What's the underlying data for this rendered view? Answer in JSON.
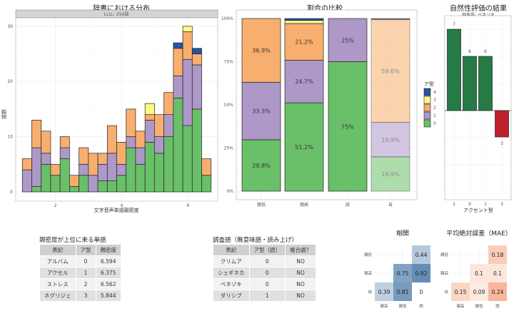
{
  "chart_data": [
    {
      "type": "bar",
      "stacked": true,
      "title": "辞書における分布",
      "facet_label": "LLLL: 254語",
      "xlabel": "文字音声単語親密度",
      "ylabel": "語数",
      "xlim": [
        0.8,
        6.9
      ],
      "ylim": [
        0,
        32
      ],
      "x_ticks": [
        2,
        4,
        6
      ],
      "y_ticks": [
        0,
        10,
        20,
        30
      ],
      "bin_width": 0.285,
      "bin_start": 1.0,
      "series": [
        {
          "name": "0",
          "color": "#6abf69",
          "values": [
            0,
            1,
            5,
            3,
            6,
            1,
            3,
            0,
            2,
            2,
            3,
            8,
            5,
            9,
            7,
            10,
            17,
            12,
            15,
            3
          ]
        },
        {
          "name": "1",
          "color": "#ae98c8",
          "values": [
            4,
            7,
            2,
            0,
            2,
            0,
            2,
            3,
            3,
            5,
            2,
            2,
            3,
            4,
            3,
            4,
            4,
            12,
            8,
            0
          ]
        },
        {
          "name": "2",
          "color": "#f8ae6e",
          "values": [
            2,
            5,
            4,
            2,
            2,
            2,
            3,
            4,
            2,
            5,
            4,
            5,
            3,
            1,
            4,
            4,
            5,
            5,
            2,
            3
          ]
        },
        {
          "name": "3",
          "color": "#fbf884",
          "values": [
            0,
            0,
            0,
            0,
            0,
            0,
            0,
            0,
            0,
            0,
            0,
            0,
            0,
            2,
            0,
            0,
            0,
            1,
            0,
            0
          ]
        },
        {
          "name": "4",
          "color": "#2755a0",
          "values": [
            0,
            0,
            0,
            0,
            0,
            0,
            0,
            0,
            0,
            0,
            0,
            0,
            0,
            0,
            0,
            0,
            1,
            0,
            1,
            0
          ]
        }
      ]
    },
    {
      "type": "bar",
      "stacked": true,
      "percent": true,
      "title": "割合の比較",
      "categories": [
        "親低",
        "親高",
        "読",
        "自"
      ],
      "y_ticks": [
        "0%",
        "25%",
        "50%",
        "75%",
        "100%"
      ],
      "legend_title": "ア型",
      "legend_position": "right",
      "legend": [
        "4",
        "3",
        "2",
        "1",
        "0"
      ],
      "series": [
        {
          "name": "0",
          "values": [
            29.8,
            51.2,
            75,
            19.9
          ],
          "labels": [
            "29.8%",
            "51.2%",
            "75%",
            "19.9%"
          ]
        },
        {
          "name": "1",
          "values": [
            33.3,
            24.7,
            25,
            19.9
          ],
          "labels": [
            "33.3%",
            "24.7%",
            "25%",
            "19.9%"
          ]
        },
        {
          "name": "2",
          "values": [
            36.9,
            21.2,
            0,
            59.6
          ],
          "labels": [
            "36.9%",
            "21.2%",
            "",
            "59.6%"
          ]
        },
        {
          "name": "3",
          "values": [
            0,
            1.8,
            0,
            0.3
          ],
          "labels": [
            "",
            "",
            "",
            ""
          ]
        },
        {
          "name": "4",
          "values": [
            0,
            1.1,
            0,
            0.3
          ],
          "labels": [
            "",
            "",
            "",
            ""
          ]
        }
      ],
      "faded_category": "自"
    },
    {
      "type": "bar",
      "title": "自然性評価の結果",
      "subtitle": "調査語: ベネゾキ",
      "xlabel": "アクセント型",
      "categories": [
        "2",
        "0",
        "1",
        "3"
      ],
      "values": [
        7,
        6,
        6,
        -3
      ],
      "labels": [
        "7",
        "6",
        "6",
        "3"
      ],
      "colors": {
        "positive": "#257a45",
        "negative": "#c0202b"
      }
    },
    {
      "type": "heatmap",
      "title": "相関",
      "x_categories": [
        "親高",
        "親低",
        "読"
      ],
      "y_categories": [
        "親低",
        "親高",
        "自"
      ],
      "cells": [
        {
          "x": "読",
          "y": "親低",
          "value": 0.44
        },
        {
          "x": "親低",
          "y": "親高",
          "value": 0.75
        },
        {
          "x": "読",
          "y": "親高",
          "value": 0.92
        },
        {
          "x": "親高",
          "y": "自",
          "value": 0.39
        },
        {
          "x": "親低",
          "y": "自",
          "value": 0.81
        },
        {
          "x": "読",
          "y": "自",
          "value": 0
        }
      ]
    },
    {
      "type": "heatmap",
      "title": "平均絶対誤差（MAE）",
      "x_categories": [
        "親高",
        "親低",
        "読"
      ],
      "y_categories": [
        "親低",
        "親高",
        "自"
      ],
      "cells": [
        {
          "x": "読",
          "y": "親低",
          "value": 0.18
        },
        {
          "x": "親低",
          "y": "親高",
          "value": 0.1
        },
        {
          "x": "読",
          "y": "親高",
          "value": 0.1
        },
        {
          "x": "親高",
          "y": "自",
          "value": 0.15
        },
        {
          "x": "親低",
          "y": "自",
          "value": 0.09
        },
        {
          "x": "読",
          "y": "自",
          "value": 0.24
        }
      ]
    }
  ],
  "tables": {
    "familiarity": {
      "title": "親密度が上位に来る単語",
      "headers": [
        "表記",
        "ア型",
        "親密度"
      ],
      "rows": [
        [
          "アルバム",
          "0",
          "6.594"
        ],
        [
          "アクセル",
          "1",
          "6.375"
        ],
        [
          "ストレス",
          "2",
          "6.562"
        ],
        [
          "ネグリジェ",
          "3",
          "5.844"
        ]
      ]
    },
    "survey": {
      "title": "調査語（無意味語・読み上げ）",
      "headers": [
        "表記",
        "ア型（読）",
        "複合語？"
      ],
      "rows": [
        [
          "クリムア",
          "0",
          "NO"
        ],
        [
          "シェギネカ",
          "0",
          "NO"
        ],
        [
          "ベネゾキ",
          "0",
          "NO"
        ],
        [
          "ダリシブ",
          "1",
          "NO"
        ]
      ]
    }
  }
}
